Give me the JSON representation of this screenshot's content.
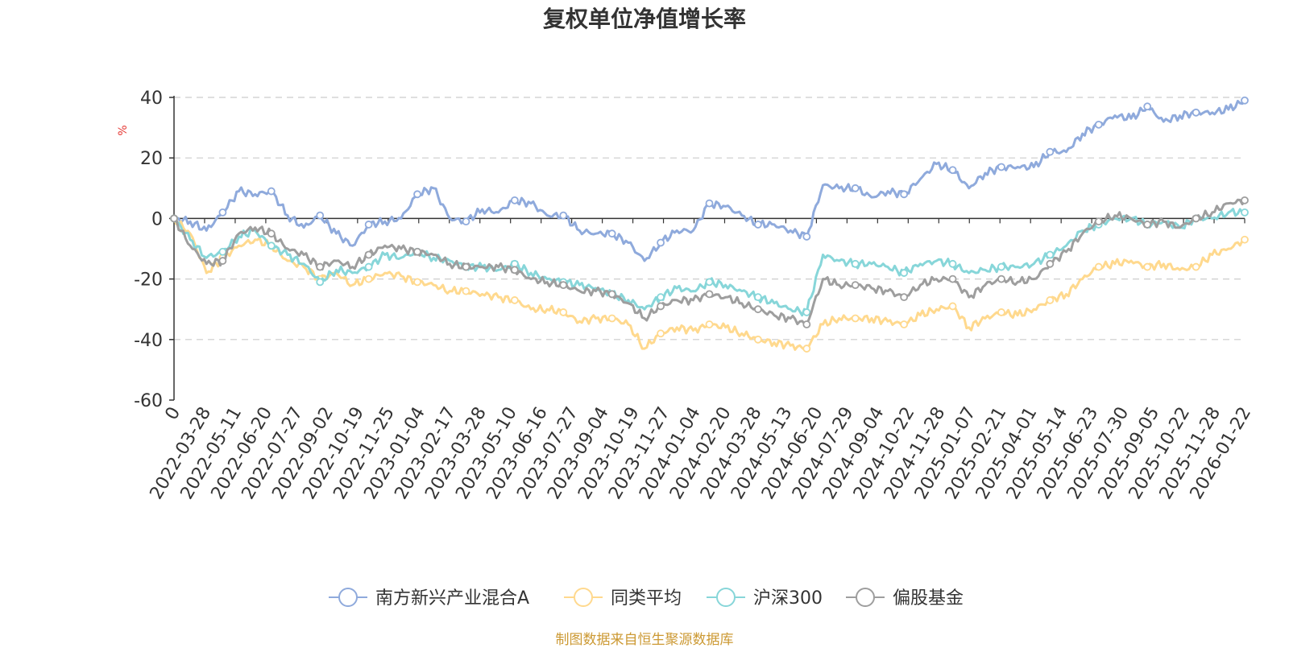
{
  "chart_data": {
    "type": "line",
    "title": "复权单位净值增长率",
    "ylabel": "%",
    "ylim": [
      -60,
      40
    ],
    "yticks": [
      40,
      20,
      0,
      -20,
      -40,
      -60
    ],
    "x_tick_labels": [
      "0",
      "2022-03-28",
      "2022-05-11",
      "2022-06-20",
      "2022-07-27",
      "2022-09-02",
      "2022-10-19",
      "2022-11-25",
      "2023-01-04",
      "2023-02-17",
      "2023-03-28",
      "2023-05-10",
      "2023-06-16",
      "2023-07-27",
      "2023-09-04",
      "2023-10-19",
      "2023-11-27",
      "2024-01-04",
      "2024-02-20",
      "2024-03-28",
      "2024-05-13",
      "2024-06-20",
      "2024-07-29",
      "2024-09-04",
      "2024-10-22",
      "2024-11-28",
      "2025-01-07",
      "2025-02-21",
      "2025-04-01",
      "2025-05-14",
      "2025-06-23",
      "2025-07-30",
      "2025-09-05",
      "2025-10-22",
      "2025-11-28",
      "2026-01-22"
    ],
    "grid": true,
    "legend_position": "bottom",
    "series": [
      {
        "name": "南方新兴产业混合A",
        "color": "#8FAADC",
        "values": [
          0,
          -1,
          -4,
          2,
          9,
          8,
          9,
          1,
          -3,
          1,
          -5,
          -9,
          -2,
          -1,
          0,
          8,
          10,
          0,
          -1,
          3,
          2,
          6,
          5,
          1,
          1,
          -4,
          -5,
          -5,
          -8,
          -14,
          -8,
          -4,
          -4,
          5,
          4,
          1,
          -2,
          -2,
          -4,
          -6,
          11,
          10,
          10,
          7,
          9,
          8,
          13,
          18,
          16,
          10,
          15,
          17,
          17,
          17,
          22,
          22,
          28,
          31,
          34,
          33,
          37,
          32,
          34,
          35,
          35,
          36,
          39
        ]
      },
      {
        "name": "同类平均",
        "color": "#FFD98E",
        "values": [
          0,
          -5,
          -18,
          -13,
          -9,
          -7,
          -9,
          -14,
          -16,
          -20,
          -18,
          -22,
          -20,
          -18,
          -19,
          -21,
          -22,
          -24,
          -24,
          -25,
          -26,
          -27,
          -30,
          -30,
          -31,
          -34,
          -33,
          -33,
          -35,
          -43,
          -38,
          -36,
          -37,
          -35,
          -36,
          -38,
          -40,
          -41,
          -42,
          -43,
          -35,
          -33,
          -33,
          -33,
          -34,
          -35,
          -32,
          -30,
          -29,
          -36,
          -33,
          -31,
          -32,
          -30,
          -27,
          -25,
          -20,
          -16,
          -15,
          -14,
          -16,
          -15,
          -17,
          -16,
          -12,
          -10,
          -7
        ]
      },
      {
        "name": "沪深300",
        "color": "#87D6D9",
        "values": [
          0,
          -7,
          -13,
          -11,
          -6,
          -4,
          -9,
          -12,
          -15,
          -21,
          -17,
          -18,
          -16,
          -12,
          -13,
          -11,
          -13,
          -14,
          -16,
          -16,
          -17,
          -15,
          -18,
          -20,
          -21,
          -22,
          -23,
          -25,
          -27,
          -30,
          -26,
          -23,
          -24,
          -21,
          -22,
          -24,
          -26,
          -28,
          -30,
          -31,
          -12,
          -14,
          -15,
          -15,
          -16,
          -18,
          -15,
          -14,
          -15,
          -18,
          -17,
          -16,
          -16,
          -15,
          -12,
          -9,
          -4,
          -2,
          0,
          0,
          -2,
          -1,
          -3,
          0,
          0,
          2,
          2
        ]
      },
      {
        "name": "偏股基金",
        "color": "#9E9E9E",
        "values": [
          0,
          -9,
          -15,
          -14,
          -5,
          -3,
          -5,
          -10,
          -12,
          -16,
          -14,
          -16,
          -12,
          -9,
          -10,
          -11,
          -12,
          -15,
          -16,
          -16,
          -16,
          -17,
          -20,
          -21,
          -22,
          -24,
          -24,
          -25,
          -28,
          -33,
          -29,
          -27,
          -27,
          -25,
          -26,
          -28,
          -30,
          -32,
          -33,
          -35,
          -20,
          -22,
          -22,
          -23,
          -24,
          -26,
          -22,
          -20,
          -20,
          -26,
          -22,
          -20,
          -21,
          -20,
          -15,
          -11,
          -5,
          -1,
          1,
          0,
          -2,
          -1,
          -3,
          0,
          2,
          5,
          6
        ]
      }
    ]
  },
  "source_note": {
    "text": "制图数据来自恒生聚源数据库",
    "color": "#CC9933"
  },
  "colors": {
    "axis": "#333333",
    "grid": "#CCCCCC",
    "unit": "#E53935"
  }
}
